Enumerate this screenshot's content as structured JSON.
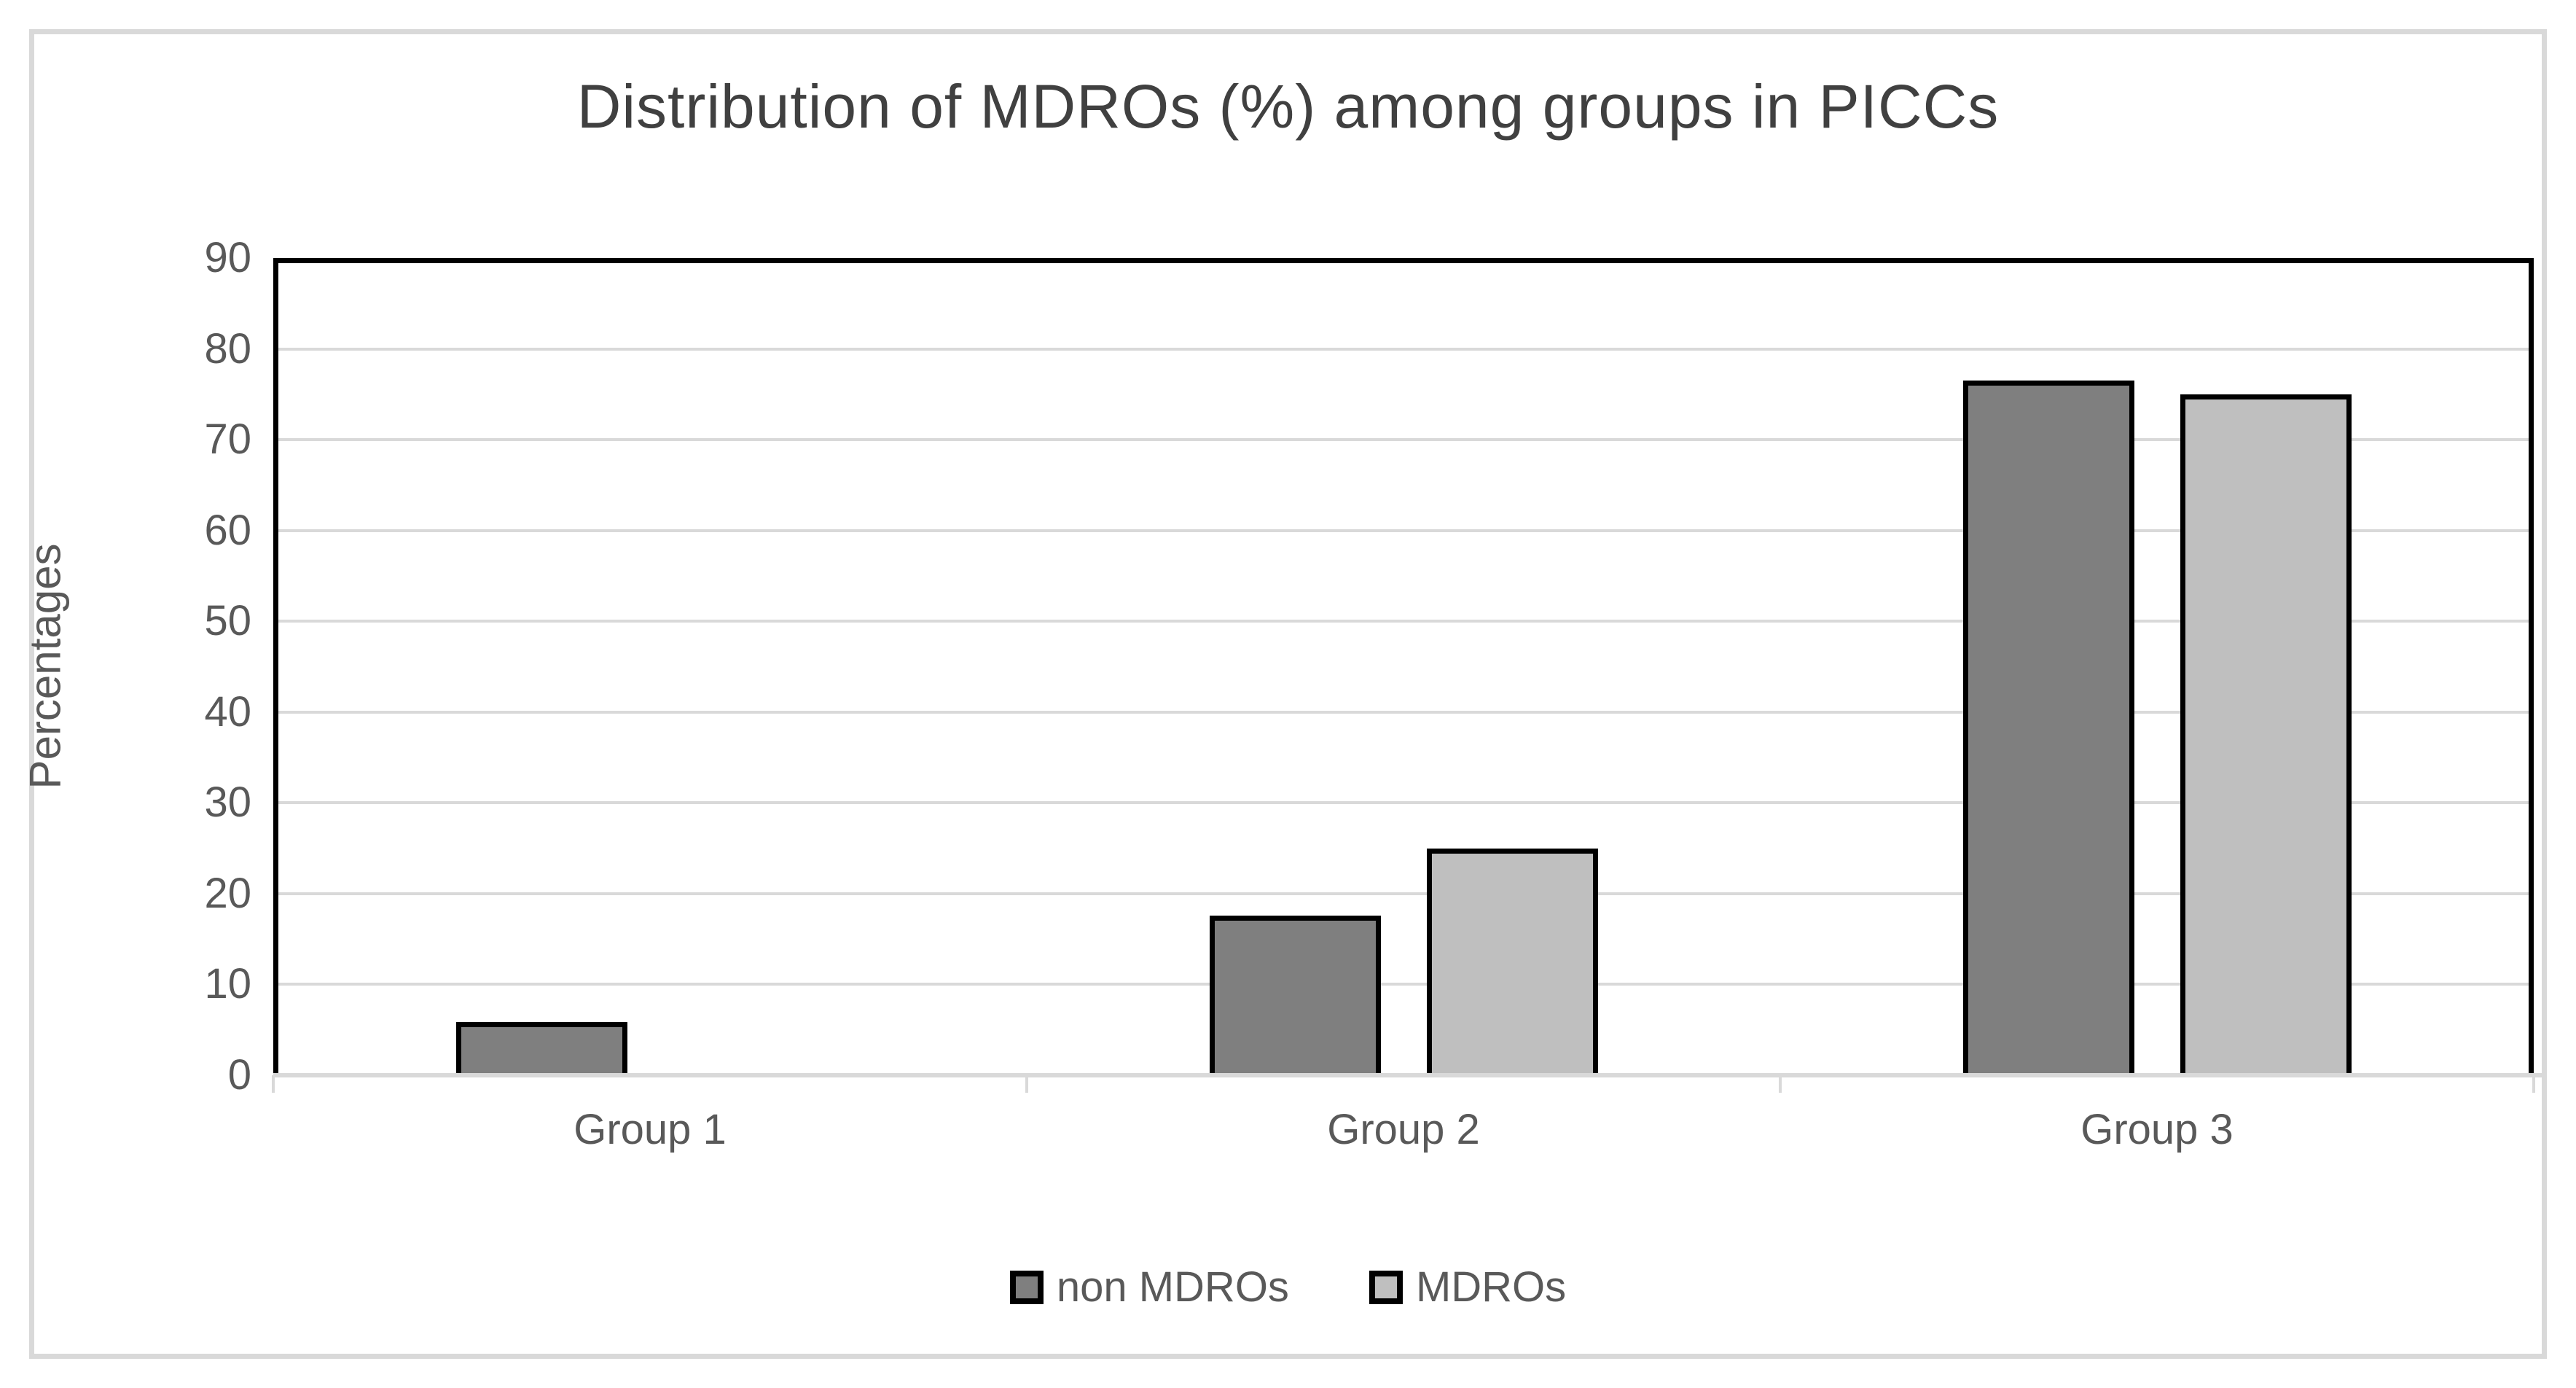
{
  "title": "Distribution of MDROs (%) among groups in PICCs",
  "chart_data": {
    "type": "bar",
    "title": "Distribution of MDROs (%) among groups in PICCs",
    "categories": [
      "Group 1",
      "Group 2",
      "Group 3"
    ],
    "series": [
      {
        "name": "non MDROs",
        "color": "#7f7f7f",
        "values": [
          5.9,
          17.6,
          76.5
        ]
      },
      {
        "name": "MDROs",
        "color": "#bfbfbf",
        "values": [
          0,
          25,
          75
        ]
      }
    ],
    "xlabel": "",
    "ylabel": "Percentages",
    "ylim": [
      0,
      90
    ],
    "ytick_step": 10,
    "yticks": [
      0,
      10,
      20,
      30,
      40,
      50,
      60,
      70,
      80,
      90
    ],
    "grid": "horizontal-gridlines-on",
    "legend_position": "bottom-center",
    "colors": {
      "title_text": "#404040",
      "axis_text": "#595959",
      "gridline": "#d9d9d9",
      "axis_frame": "#000000",
      "bar_border": "#000000",
      "outer_border": "#d9d9d9",
      "background": "#ffffff"
    }
  }
}
